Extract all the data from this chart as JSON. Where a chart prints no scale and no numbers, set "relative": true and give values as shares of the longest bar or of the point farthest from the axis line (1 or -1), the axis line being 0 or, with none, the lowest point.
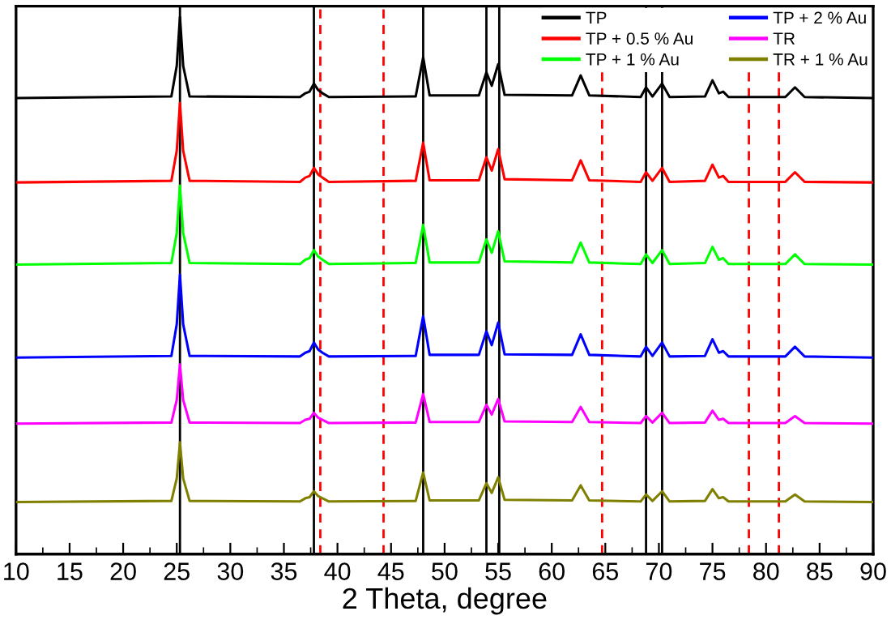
{
  "chart_data": {
    "type": "line",
    "relative": true,
    "xlabel": "2 Theta, degree",
    "xlim": [
      10,
      90
    ],
    "xticks": [
      10,
      15,
      20,
      25,
      30,
      35,
      40,
      45,
      50,
      55,
      60,
      65,
      70,
      75,
      80,
      85,
      90
    ],
    "x": [
      10,
      24.5,
      25.0,
      25.3,
      25.6,
      26.2,
      36.5,
      37.0,
      37.4,
      37.8,
      38.2,
      38.6,
      39.2,
      47.3,
      48.0,
      48.6,
      53.2,
      53.9,
      54.4,
      55.0,
      55.6,
      61.9,
      62.7,
      63.5,
      68.3,
      68.8,
      69.4,
      70.3,
      71.0,
      74.3,
      75.0,
      75.6,
      76.0,
      76.5,
      81.8,
      82.7,
      83.6,
      90
    ],
    "series": [
      {
        "name": "TP",
        "color": "#000000",
        "values": [
          0.849,
          0.852,
          0.909,
          1.0,
          0.909,
          0.852,
          0.851,
          0.858,
          0.861,
          0.876,
          0.864,
          0.858,
          0.851,
          0.852,
          0.925,
          0.854,
          0.854,
          0.897,
          0.872,
          0.912,
          0.855,
          0.854,
          0.891,
          0.854,
          0.851,
          0.869,
          0.852,
          0.876,
          0.851,
          0.852,
          0.882,
          0.858,
          0.861,
          0.851,
          0.851,
          0.869,
          0.851,
          0.849
        ]
      },
      {
        "name": "TP + 0.5 % Au",
        "color": "#ff0000",
        "values": [
          0.692,
          0.695,
          0.751,
          0.84,
          0.751,
          0.695,
          0.693,
          0.701,
          0.704,
          0.719,
          0.707,
          0.701,
          0.693,
          0.695,
          0.766,
          0.696,
          0.696,
          0.739,
          0.714,
          0.754,
          0.698,
          0.696,
          0.733,
          0.696,
          0.693,
          0.711,
          0.695,
          0.719,
          0.693,
          0.695,
          0.725,
          0.701,
          0.704,
          0.693,
          0.693,
          0.711,
          0.693,
          0.692
        ]
      },
      {
        "name": "TP + 1 % Au",
        "color": "#00ff00",
        "values": [
          0.539,
          0.542,
          0.598,
          0.686,
          0.598,
          0.542,
          0.54,
          0.548,
          0.551,
          0.566,
          0.554,
          0.548,
          0.54,
          0.542,
          0.613,
          0.543,
          0.543,
          0.586,
          0.561,
          0.601,
          0.545,
          0.543,
          0.58,
          0.543,
          0.54,
          0.558,
          0.542,
          0.566,
          0.54,
          0.542,
          0.572,
          0.548,
          0.551,
          0.54,
          0.54,
          0.558,
          0.54,
          0.539
        ]
      },
      {
        "name": "TP + 2 % Au",
        "color": "#0000ff",
        "values": [
          0.366,
          0.369,
          0.428,
          0.52,
          0.428,
          0.369,
          0.368,
          0.375,
          0.378,
          0.394,
          0.381,
          0.375,
          0.368,
          0.369,
          0.443,
          0.371,
          0.371,
          0.415,
          0.389,
          0.431,
          0.372,
          0.371,
          0.409,
          0.371,
          0.368,
          0.386,
          0.369,
          0.394,
          0.368,
          0.369,
          0.4,
          0.375,
          0.378,
          0.368,
          0.368,
          0.386,
          0.368,
          0.366
        ]
      },
      {
        "name": "TR",
        "color": "#ff00ff",
        "values": [
          0.243,
          0.245,
          0.287,
          0.353,
          0.287,
          0.245,
          0.244,
          0.25,
          0.252,
          0.263,
          0.254,
          0.25,
          0.244,
          0.245,
          0.298,
          0.246,
          0.246,
          0.278,
          0.26,
          0.289,
          0.247,
          0.246,
          0.274,
          0.246,
          0.244,
          0.257,
          0.245,
          0.263,
          0.244,
          0.245,
          0.267,
          0.25,
          0.252,
          0.244,
          0.244,
          0.257,
          0.244,
          0.243
        ]
      },
      {
        "name": "TR + 1 % Au",
        "color": "#808000",
        "values": [
          0.097,
          0.099,
          0.141,
          0.208,
          0.141,
          0.099,
          0.098,
          0.104,
          0.106,
          0.117,
          0.108,
          0.104,
          0.098,
          0.099,
          0.152,
          0.1,
          0.1,
          0.132,
          0.114,
          0.143,
          0.101,
          0.1,
          0.128,
          0.1,
          0.098,
          0.111,
          0.099,
          0.117,
          0.098,
          0.099,
          0.121,
          0.104,
          0.106,
          0.098,
          0.098,
          0.111,
          0.098,
          0.097
        ]
      }
    ],
    "ref_lines": [
      {
        "axis": "x",
        "value": 25.3,
        "color": "#000000",
        "line_style": "solid"
      },
      {
        "axis": "x",
        "value": 37.8,
        "color": "#000000",
        "line_style": "solid"
      },
      {
        "axis": "x",
        "value": 48.0,
        "color": "#000000",
        "line_style": "solid"
      },
      {
        "axis": "x",
        "value": 53.9,
        "color": "#000000",
        "line_style": "solid"
      },
      {
        "axis": "x",
        "value": 55.1,
        "color": "#000000",
        "line_style": "solid"
      },
      {
        "axis": "x",
        "value": 68.8,
        "color": "#000000",
        "line_style": "solid"
      },
      {
        "axis": "x",
        "value": 70.3,
        "color": "#000000",
        "line_style": "solid"
      },
      {
        "axis": "x",
        "value": 38.4,
        "color": "#ff0000",
        "line_style": "dashed"
      },
      {
        "axis": "x",
        "value": 44.3,
        "color": "#ff0000",
        "line_style": "dashed"
      },
      {
        "axis": "x",
        "value": 64.7,
        "color": "#ff0000",
        "line_style": "dashed"
      },
      {
        "axis": "x",
        "value": 78.4,
        "color": "#ff0000",
        "line_style": "dashed"
      },
      {
        "axis": "x",
        "value": 81.2,
        "color": "#ff0000",
        "line_style": "dashed"
      }
    ],
    "legend": "top right",
    "grid": false,
    "marker": "none",
    "line_style": "solid"
  }
}
